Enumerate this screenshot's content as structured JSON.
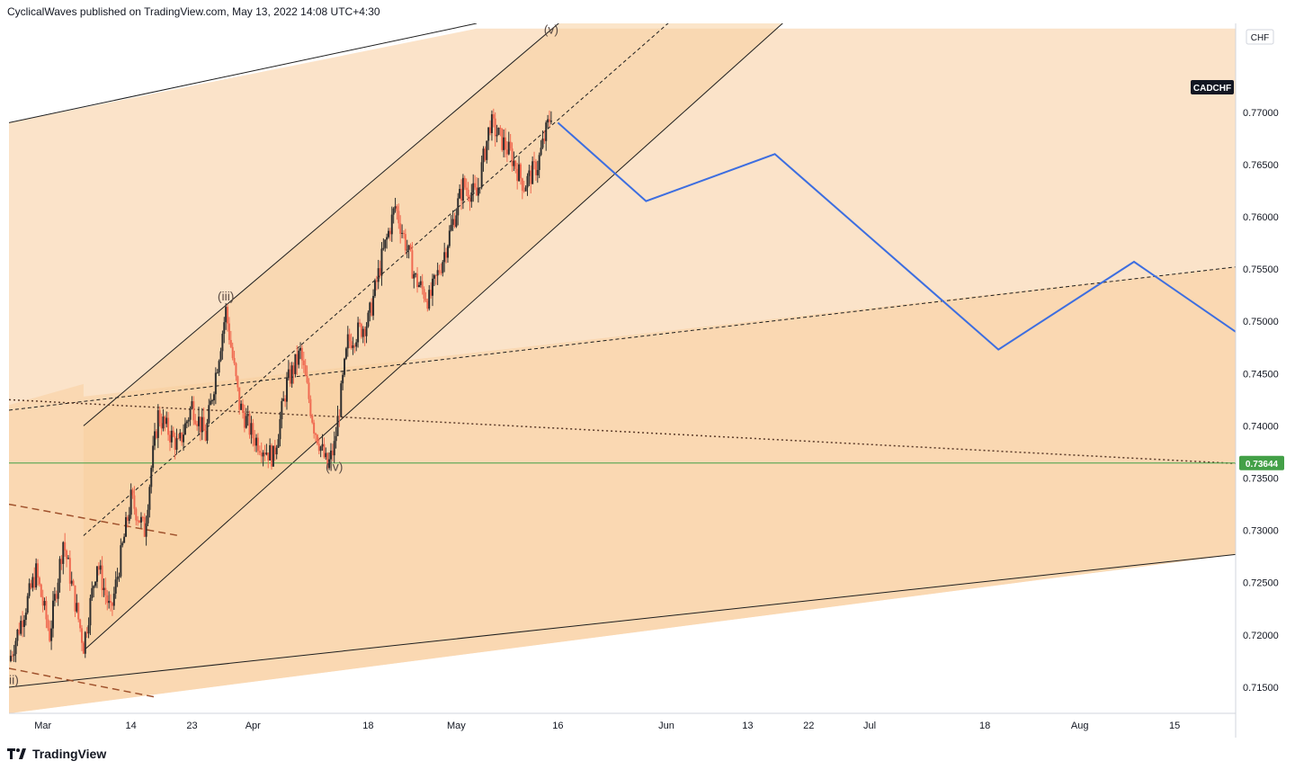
{
  "header": {
    "published": "CyclicalWaves published on TradingView.com, May 13, 2022 14:08 UTC+4:30"
  },
  "footer": {
    "brand": "TradingView"
  },
  "chart_data": {
    "type": "candlestick",
    "symbol": "CADCHF",
    "currency": "CHF",
    "current_price": "0.73644",
    "yaxis": {
      "min": 0.7125,
      "max": 0.7785,
      "ticks": [
        "0.77000",
        "0.76500",
        "0.76000",
        "0.75500",
        "0.75000",
        "0.74500",
        "0.74000",
        "0.73500",
        "0.73000",
        "0.72500",
        "0.72000",
        "0.71500"
      ]
    },
    "xaxis": {
      "start": "2022-02-24",
      "end": "2022-08-24",
      "ticks": [
        {
          "label": "Mar",
          "date": "2022-03-01"
        },
        {
          "label": "14",
          "date": "2022-03-14"
        },
        {
          "label": "23",
          "date": "2022-03-23"
        },
        {
          "label": "Apr",
          "date": "2022-04-01"
        },
        {
          "label": "18",
          "date": "2022-04-18"
        },
        {
          "label": "May",
          "date": "2022-05-01"
        },
        {
          "label": "16",
          "date": "2022-05-16"
        },
        {
          "label": "Jun",
          "date": "2022-06-01"
        },
        {
          "label": "13",
          "date": "2022-06-13"
        },
        {
          "label": "22",
          "date": "2022-06-22"
        },
        {
          "label": "Jul",
          "date": "2022-07-01"
        },
        {
          "label": "18",
          "date": "2022-07-18"
        },
        {
          "label": "Aug",
          "date": "2022-08-01"
        },
        {
          "label": "15",
          "date": "2022-08-15"
        }
      ]
    },
    "price_path": [
      [
        "2022-02-24",
        0.7175
      ],
      [
        "2022-02-28",
        0.726
      ],
      [
        "2022-03-02",
        0.72
      ],
      [
        "2022-03-04",
        0.729
      ],
      [
        "2022-03-07",
        0.719
      ],
      [
        "2022-03-09",
        0.727
      ],
      [
        "2022-03-11",
        0.722
      ],
      [
        "2022-03-14",
        0.733
      ],
      [
        "2022-03-16",
        0.73
      ],
      [
        "2022-03-17",
        0.736
      ],
      [
        "2022-03-18",
        0.741
      ],
      [
        "2022-03-21",
        0.738
      ],
      [
        "2022-03-23",
        0.742
      ],
      [
        "2022-03-25",
        0.739
      ],
      [
        "2022-03-28",
        0.751
      ],
      [
        "2022-03-30",
        0.742
      ],
      [
        "2022-04-01",
        0.739
      ],
      [
        "2022-04-04",
        0.737
      ],
      [
        "2022-04-06",
        0.744
      ],
      [
        "2022-04-08",
        0.747
      ],
      [
        "2022-04-10",
        0.74
      ],
      [
        "2022-04-12",
        0.736
      ],
      [
        "2022-04-13",
        0.738
      ],
      [
        "2022-04-15",
        0.748
      ],
      [
        "2022-04-18",
        0.75
      ],
      [
        "2022-04-20",
        0.756
      ],
      [
        "2022-04-22",
        0.761
      ],
      [
        "2022-04-25",
        0.754
      ],
      [
        "2022-04-27",
        0.752
      ],
      [
        "2022-04-29",
        0.756
      ],
      [
        "2022-05-02",
        0.763
      ],
      [
        "2022-05-04",
        0.762
      ],
      [
        "2022-05-06",
        0.769
      ],
      [
        "2022-05-09",
        0.766
      ],
      [
        "2022-05-11",
        0.763
      ],
      [
        "2022-05-13",
        0.765
      ],
      [
        "2022-05-15",
        0.77
      ]
    ],
    "projection": [
      [
        "2022-05-16",
        0.769
      ],
      [
        "2022-05-29",
        0.7615
      ],
      [
        "2022-06-17",
        0.766
      ],
      [
        "2022-07-20",
        0.7473
      ],
      [
        "2022-08-09",
        0.7557
      ],
      [
        "2022-08-24",
        0.749
      ]
    ],
    "wave_labels": [
      {
        "text": "(iii)",
        "date": "2022-03-28",
        "price": 0.752
      },
      {
        "text": "(iv)",
        "date": "2022-04-13",
        "price": 0.7357
      },
      {
        "text": "(v)",
        "date": "2022-05-15",
        "price": 0.7775
      },
      {
        "text": "ii)",
        "date": "2022-02-24",
        "price": 0.7153
      }
    ],
    "horizontal_line_price": 0.73644,
    "colors": {
      "up": "#2e2e2e",
      "down": "#f06a51",
      "projection": "#3d6ee0",
      "horizontal": "#43a047",
      "band_outer": "#fbe3c9",
      "band_inner": "#fad8b2",
      "channel": "#f8cf9f",
      "price_badge": "#43a047",
      "symbol_badge": "#131722"
    }
  }
}
